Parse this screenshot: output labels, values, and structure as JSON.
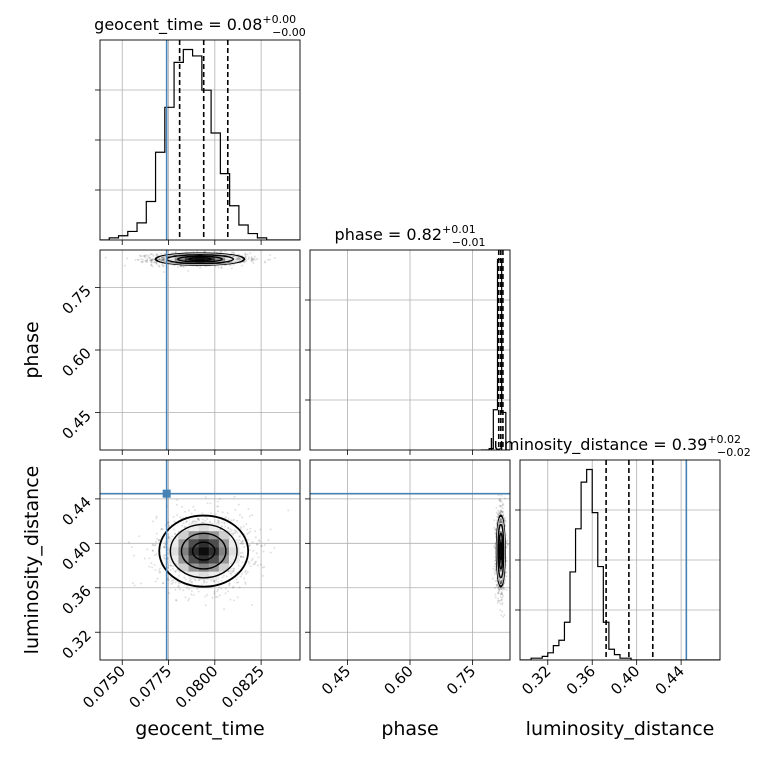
{
  "chart_data": {
    "type": "corner",
    "parameters": [
      "geocent_time",
      "phase",
      "luminosity_distance"
    ],
    "titles": [
      {
        "param": "geocent_time",
        "label": "geocent_time",
        "median": "0.08",
        "plus": "+0.00",
        "minus": "−0.00"
      },
      {
        "param": "phase",
        "label": "phase",
        "median": "0.82",
        "plus": "+0.01",
        "minus": "−0.01"
      },
      {
        "param": "luminosity_distance",
        "label": "luminosity_distance",
        "median": "0.39",
        "plus": "+0.02",
        "minus": "−0.02"
      }
    ],
    "axis_labels": {
      "x": [
        "geocent_time",
        "phase",
        "luminosity_distance"
      ],
      "y": [
        "phase",
        "luminosity_distance"
      ]
    },
    "ranges": {
      "geocent_time": [
        0.0738,
        0.0846
      ],
      "phase": [
        0.36,
        0.84
      ],
      "luminosity_distance": [
        0.295,
        0.475
      ]
    },
    "ticks": {
      "geocent_time": [
        "0.0750",
        "0.0775",
        "0.0800",
        "0.0825"
      ],
      "phase": [
        "0.45",
        "0.60",
        "0.75"
      ],
      "luminosity_distance": [
        "0.32",
        "0.36",
        "0.40",
        "0.44"
      ]
    },
    "tick_values": {
      "geocent_time": [
        0.075,
        0.0775,
        0.08,
        0.0825
      ],
      "phase": [
        0.45,
        0.6,
        0.75
      ],
      "luminosity_distance": [
        0.32,
        0.36,
        0.4,
        0.44
      ]
    },
    "truths": {
      "geocent_time": 0.0774,
      "phase": null,
      "luminosity_distance": 0.4447
    },
    "quantiles": {
      "geocent_time": [
        0.0781,
        0.0794,
        0.0807
      ],
      "phase": [
        0.813,
        0.818,
        0.823
      ],
      "luminosity_distance": [
        0.3725,
        0.393,
        0.4145
      ]
    },
    "histograms": {
      "geocent_time": {
        "edges_start": 0.0738,
        "bin_width": 0.0005,
        "counts": [
          0,
          1,
          2,
          4,
          8,
          18,
          41,
          62,
          83,
          89,
          86,
          70,
          50,
          31,
          16,
          7,
          3,
          1,
          0,
          0,
          0,
          0
        ]
      },
      "phase": {
        "edges_start": 0.77,
        "bin_width": 0.01,
        "counts": [
          0,
          0,
          1,
          30,
          142,
          28,
          0
        ]
      },
      "luminosity_distance": {
        "edges_start": 0.295,
        "bin_width": 0.005,
        "counts": [
          0,
          0,
          1,
          1,
          2,
          4,
          8,
          11,
          21,
          49,
          73,
          99,
          106,
          82,
          52,
          21,
          6,
          3,
          1,
          1,
          0,
          0,
          0,
          0,
          0,
          0,
          0,
          0,
          0,
          0,
          0,
          0,
          0,
          0,
          0,
          0
        ]
      }
    },
    "joint": [
      {
        "x": "geocent_time",
        "y": "phase",
        "center": [
          0.0792,
          0.818
        ],
        "sigma": [
          0.0012,
          0.007
        ]
      },
      {
        "x": "geocent_time",
        "y": "luminosity_distance",
        "center": [
          0.0794,
          0.393
        ],
        "sigma": [
          0.0012,
          0.016
        ]
      },
      {
        "x": "phase",
        "y": "luminosity_distance",
        "center": [
          0.818,
          0.393
        ],
        "sigma": [
          0.005,
          0.016
        ]
      }
    ],
    "grid": true
  }
}
